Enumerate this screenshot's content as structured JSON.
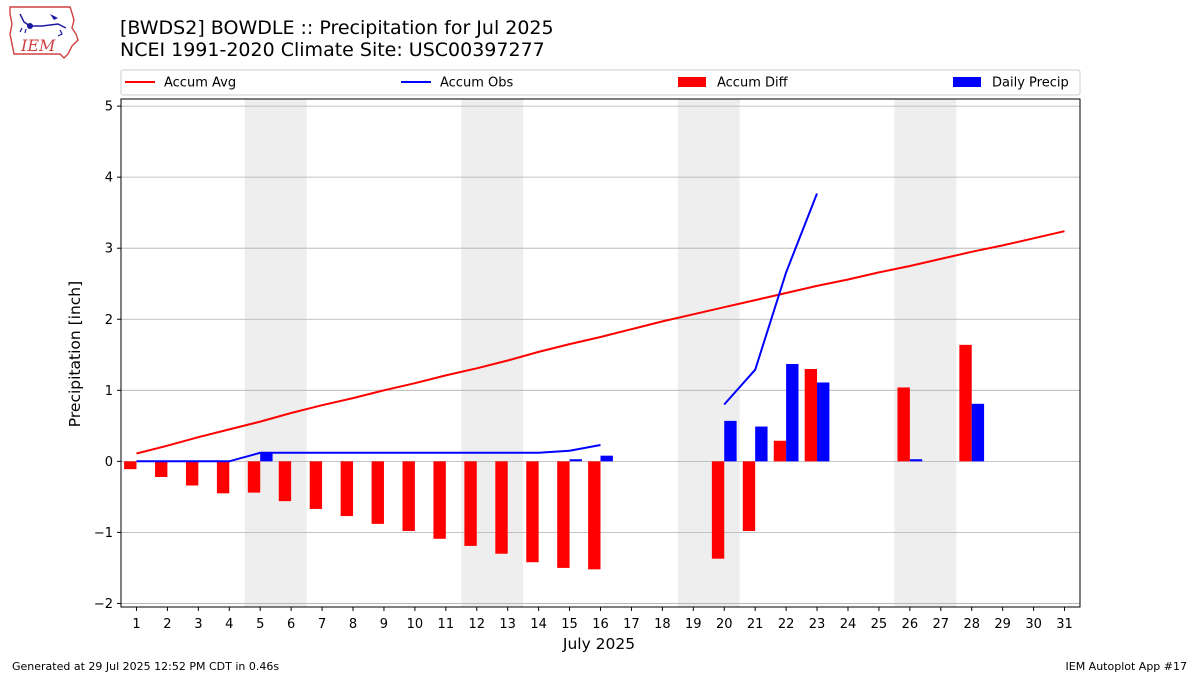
{
  "title_line1": "[BWDS2] BOWDLE :: Precipitation for Jul 2025",
  "title_line2": "NCEI 1991-2020 Climate Site: USC00397277",
  "logo_text": "IEM",
  "footer_left": "Generated at 29 Jul 2025 12:52 PM CDT in 0.46s",
  "footer_right": "IEM Autoplot App #17",
  "colors": {
    "accum_avg": "#ff0000",
    "accum_obs": "#0000ff",
    "accum_diff": "#ff0000",
    "daily_precip": "#0000ff",
    "weekend_shade": "#eeeeee",
    "grid": "#b0b0b0"
  },
  "chart_data": {
    "type": "bar",
    "xlabel": "July 2025",
    "ylabel": "Precipitation [inch]",
    "xlim": [
      0.5,
      31.5
    ],
    "ylim": [
      -2.05,
      5.1
    ],
    "yticks": [
      -2,
      -1,
      0,
      1,
      2,
      3,
      4,
      5
    ],
    "ytick_labels": [
      "−2",
      "−1",
      "0",
      "1",
      "2",
      "3",
      "4",
      "5"
    ],
    "days": [
      1,
      2,
      3,
      4,
      5,
      6,
      7,
      8,
      9,
      10,
      11,
      12,
      13,
      14,
      15,
      16,
      17,
      18,
      19,
      20,
      21,
      22,
      23,
      24,
      25,
      26,
      27,
      28,
      29,
      30,
      31
    ],
    "grid": "horizontal",
    "legend_position": "top",
    "weekend_spans": [
      [
        4.5,
        6.5
      ],
      [
        11.5,
        13.5
      ],
      [
        18.5,
        20.5
      ],
      [
        25.5,
        27.5
      ]
    ],
    "series": [
      {
        "name": "Accum Avg",
        "kind": "line",
        "values": [
          0.11,
          0.22,
          0.34,
          0.45,
          0.56,
          0.68,
          0.79,
          0.89,
          1.0,
          1.1,
          1.21,
          1.31,
          1.42,
          1.54,
          1.65,
          1.75,
          1.86,
          1.97,
          2.07,
          2.17,
          2.27,
          2.37,
          2.47,
          2.56,
          2.66,
          2.75,
          2.85,
          2.95,
          3.04,
          3.14,
          3.24
        ]
      },
      {
        "name": "Accum Obs",
        "kind": "line",
        "values": [
          0.0,
          0.0,
          0.0,
          0.0,
          0.12,
          0.12,
          0.12,
          0.12,
          0.12,
          0.12,
          0.12,
          0.12,
          0.12,
          0.12,
          0.15,
          0.23,
          null,
          null,
          null,
          0.8,
          1.29,
          2.66,
          3.77,
          null,
          null,
          null,
          null,
          null,
          null,
          null,
          null
        ]
      },
      {
        "name": "Accum Diff",
        "kind": "bar",
        "values": [
          -0.11,
          -0.22,
          -0.34,
          -0.45,
          -0.44,
          -0.56,
          -0.67,
          -0.77,
          -0.88,
          -0.98,
          -1.09,
          -1.19,
          -1.3,
          -1.42,
          -1.5,
          -1.52,
          null,
          null,
          null,
          -1.37,
          -0.98,
          0.29,
          1.3,
          null,
          null,
          1.04,
          null,
          1.64,
          null,
          null,
          null
        ]
      },
      {
        "name": "Daily Precip",
        "kind": "bar",
        "values": [
          0.0,
          0.0,
          0.0,
          0.0,
          0.12,
          0.0,
          0.0,
          0.0,
          0.0,
          0.0,
          0.0,
          0.0,
          0.0,
          0.0,
          0.03,
          0.08,
          null,
          null,
          null,
          0.57,
          0.49,
          1.37,
          1.11,
          null,
          null,
          0.03,
          null,
          0.81,
          null,
          null,
          null
        ]
      }
    ]
  }
}
